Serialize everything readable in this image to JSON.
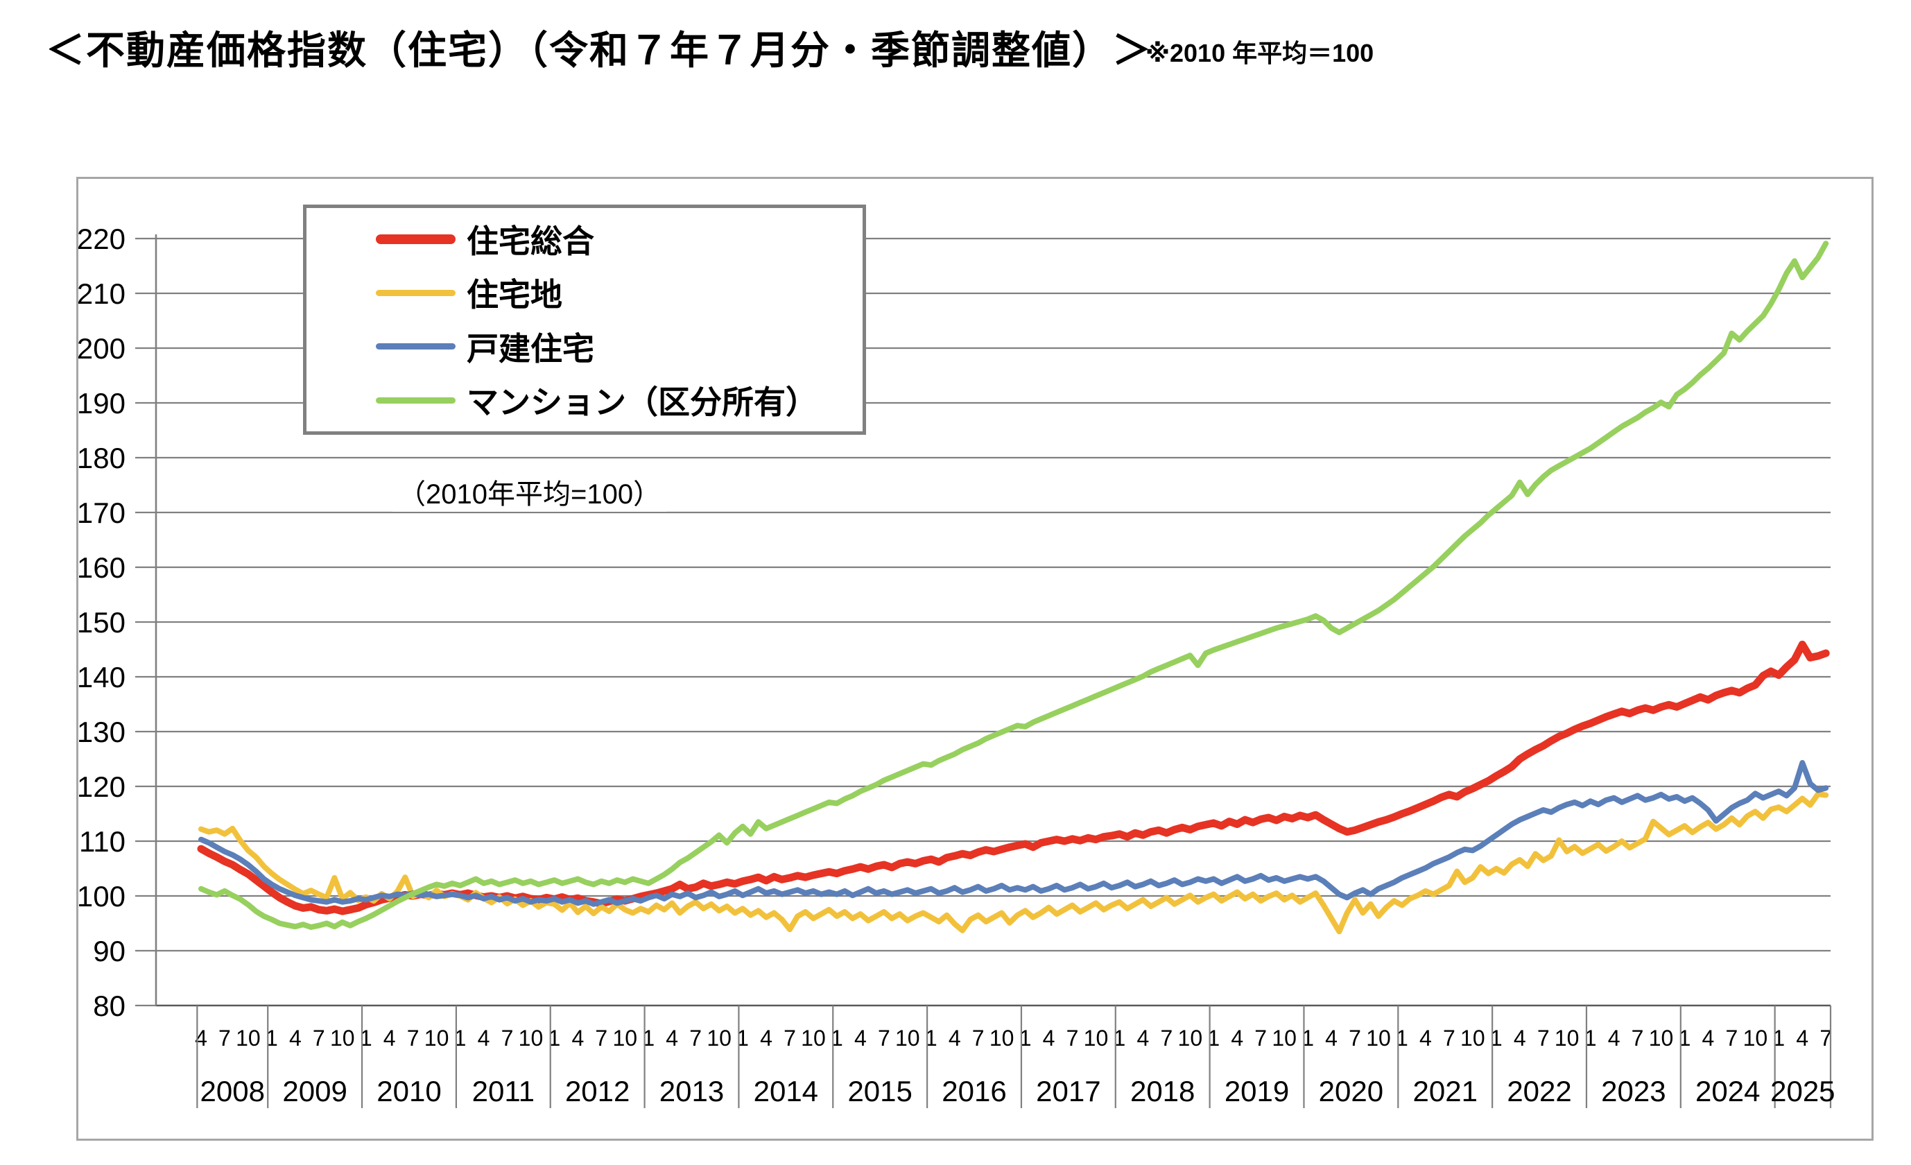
{
  "page": {
    "title": "＜不動産価格指数（住宅）（令和７年７月分・季節調整値）＞",
    "note": "※2010 年平均＝100"
  },
  "chart_data": {
    "type": "line",
    "title": "不動産価格指数（住宅）",
    "note": "（2010年平均=100）",
    "grid": true,
    "grid_color": "#808080",
    "legend_position": "top-left",
    "ylim": [
      80,
      220
    ],
    "y_ticks": [
      220,
      210,
      200,
      190,
      180,
      170,
      160,
      150,
      140,
      130,
      120,
      110,
      100,
      90,
      80
    ],
    "x_start": "2008-04",
    "x_end": "2025-07",
    "x_axis": {
      "years": [
        {
          "label": "2008",
          "months": [
            4,
            7,
            10
          ]
        },
        {
          "label": "2009",
          "months": [
            1,
            4,
            7,
            10
          ]
        },
        {
          "label": "2010",
          "months": [
            1,
            4,
            7,
            10
          ]
        },
        {
          "label": "2011",
          "months": [
            1,
            4,
            7,
            10
          ]
        },
        {
          "label": "2012",
          "months": [
            1,
            4,
            7,
            10
          ]
        },
        {
          "label": "2013",
          "months": [
            1,
            4,
            7,
            10
          ]
        },
        {
          "label": "2014",
          "months": [
            1,
            4,
            7,
            10
          ]
        },
        {
          "label": "2015",
          "months": [
            1,
            4,
            7,
            10
          ]
        },
        {
          "label": "2016",
          "months": [
            1,
            4,
            7,
            10
          ]
        },
        {
          "label": "2017",
          "months": [
            1,
            4,
            7,
            10
          ]
        },
        {
          "label": "2018",
          "months": [
            1,
            4,
            7,
            10
          ]
        },
        {
          "label": "2019",
          "months": [
            1,
            4,
            7,
            10
          ]
        },
        {
          "label": "2020",
          "months": [
            1,
            4,
            7,
            10
          ]
        },
        {
          "label": "2021",
          "months": [
            1,
            4,
            7,
            10
          ]
        },
        {
          "label": "2022",
          "months": [
            1,
            4,
            7,
            10
          ]
        },
        {
          "label": "2023",
          "months": [
            1,
            4,
            7,
            10
          ]
        },
        {
          "label": "2024",
          "months": [
            1,
            4,
            7,
            10
          ]
        },
        {
          "label": "2025",
          "months": [
            1,
            4,
            7
          ]
        }
      ]
    },
    "legend": [
      {
        "label": "住宅総合",
        "color": "#e63323",
        "thick": 14
      },
      {
        "label": "住宅地",
        "color": "#f2c13c",
        "thick": 9
      },
      {
        "label": "戸建住宅",
        "color": "#5b7fb9",
        "thick": 9
      },
      {
        "label": "マンション（区分所有）",
        "color": "#97d05e",
        "thick": 9
      }
    ],
    "series": [
      {
        "name": "住宅総合",
        "color": "#e63323",
        "width": 11,
        "values": [
          108.6,
          107.8,
          107.1,
          106.3,
          105.7,
          104.8,
          104.0,
          102.9,
          101.8,
          100.7,
          99.7,
          98.9,
          98.2,
          97.8,
          98.0,
          97.5,
          97.3,
          97.6,
          97.2,
          97.5,
          97.8,
          98.4,
          98.8,
          99.3,
          99.6,
          99.9,
          100.2,
          100.0,
          100.3,
          100.1,
          100.4,
          100.2,
          100.5,
          100.2,
          100.5,
          100.1,
          99.8,
          100.0,
          99.7,
          100.0,
          99.6,
          99.9,
          99.5,
          99.3,
          99.7,
          99.4,
          99.8,
          99.3,
          99.6,
          99.1,
          98.9,
          98.6,
          99.0,
          99.4,
          99.1,
          99.5,
          99.9,
          100.2,
          100.5,
          100.9,
          101.3,
          102.1,
          101.3,
          101.6,
          102.3,
          101.8,
          102.1,
          102.5,
          102.2,
          102.7,
          103.0,
          103.4,
          102.8,
          103.5,
          103.0,
          103.3,
          103.7,
          103.4,
          103.8,
          104.1,
          104.4,
          104.1,
          104.6,
          104.9,
          105.3,
          104.9,
          105.4,
          105.7,
          105.2,
          105.9,
          106.2,
          105.9,
          106.4,
          106.7,
          106.2,
          107.0,
          107.3,
          107.7,
          107.4,
          108.0,
          108.4,
          108.1,
          108.5,
          108.9,
          109.2,
          109.5,
          108.9,
          109.7,
          110.0,
          110.3,
          110.0,
          110.4,
          110.1,
          110.6,
          110.3,
          110.8,
          111.0,
          111.3,
          110.8,
          111.5,
          111.1,
          111.7,
          112.0,
          111.5,
          112.1,
          112.5,
          112.1,
          112.7,
          113.0,
          113.3,
          112.8,
          113.6,
          113.1,
          113.9,
          113.4,
          114.0,
          114.3,
          113.8,
          114.5,
          114.1,
          114.7,
          114.3,
          114.8,
          113.9,
          113.1,
          112.3,
          111.7,
          112.0,
          112.5,
          113.0,
          113.5,
          113.9,
          114.4,
          115.0,
          115.5,
          116.1,
          116.7,
          117.3,
          118.0,
          118.5,
          118.1,
          119.0,
          119.6,
          120.3,
          121.0,
          121.9,
          122.7,
          123.6,
          125.0,
          125.9,
          126.7,
          127.4,
          128.3,
          129.1,
          129.7,
          130.4,
          131.0,
          131.5,
          132.1,
          132.7,
          133.2,
          133.7,
          133.3,
          133.9,
          134.3,
          133.9,
          134.5,
          134.9,
          134.5,
          135.1,
          135.7,
          136.3,
          135.8,
          136.6,
          137.1,
          137.5,
          137.1,
          137.9,
          138.5,
          140.2,
          141.0,
          140.3,
          141.8,
          143.1,
          145.9,
          143.5,
          143.8,
          144.3
        ]
      },
      {
        "name": "住宅地",
        "color": "#f2c13c",
        "width": 8,
        "values": [
          112.2,
          111.7,
          112.0,
          111.3,
          112.3,
          110.1,
          108.3,
          107.1,
          105.4,
          104.1,
          103.0,
          102.1,
          101.2,
          100.4,
          101.0,
          100.3,
          99.7,
          103.3,
          99.5,
          100.6,
          99.2,
          99.8,
          99.1,
          100.4,
          99.5,
          100.8,
          103.4,
          99.9,
          100.6,
          99.7,
          101.0,
          99.9,
          100.4,
          100.0,
          99.3,
          100.6,
          99.6,
          98.8,
          99.8,
          98.6,
          99.4,
          98.3,
          99.1,
          98.0,
          98.8,
          98.5,
          97.4,
          98.7,
          97.0,
          98.1,
          96.8,
          98.0,
          97.2,
          98.5,
          97.5,
          96.9,
          97.7,
          97.1,
          98.3,
          97.5,
          98.7,
          96.9,
          98.1,
          98.9,
          97.7,
          98.5,
          97.3,
          98.1,
          96.9,
          97.7,
          96.5,
          97.3,
          96.1,
          96.9,
          95.7,
          93.9,
          96.3,
          97.1,
          95.9,
          96.7,
          97.5,
          96.3,
          97.1,
          95.9,
          96.7,
          95.5,
          96.3,
          97.1,
          95.9,
          96.7,
          95.5,
          96.3,
          96.9,
          96.1,
          95.3,
          96.5,
          94.9,
          93.7,
          95.7,
          96.5,
          95.3,
          96.1,
          96.9,
          95.1,
          96.5,
          97.3,
          96.1,
          96.9,
          97.9,
          96.7,
          97.5,
          98.3,
          97.1,
          97.9,
          98.7,
          97.5,
          98.3,
          98.9,
          97.7,
          98.5,
          99.3,
          98.1,
          98.9,
          99.7,
          98.5,
          99.3,
          100.1,
          98.9,
          99.7,
          100.3,
          99.1,
          99.9,
          100.7,
          99.5,
          100.3,
          99.1,
          99.9,
          100.5,
          99.3,
          100.1,
          98.9,
          99.7,
          100.5,
          98.3,
          95.9,
          93.5,
          96.9,
          99.3,
          96.9,
          98.5,
          96.3,
          97.9,
          99.1,
          98.3,
          99.5,
          100.1,
          100.9,
          100.3,
          101.1,
          101.9,
          104.5,
          102.5,
          103.3,
          105.3,
          104.1,
          105.0,
          104.2,
          105.8,
          106.6,
          105.4,
          107.7,
          106.5,
          107.3,
          110.2,
          108.1,
          109.0,
          107.8,
          108.6,
          109.4,
          108.2,
          109.0,
          110.0,
          108.8,
          109.6,
          110.4,
          113.6,
          112.4,
          111.2,
          112.0,
          112.8,
          111.6,
          112.6,
          113.4,
          112.2,
          113.0,
          114.2,
          113.0,
          114.6,
          115.4,
          114.2,
          115.8,
          116.2,
          115.4,
          116.6,
          117.8,
          116.6,
          118.6,
          118.4
        ]
      },
      {
        "name": "戸建住宅",
        "color": "#5b7fb9",
        "width": 8,
        "values": [
          110.3,
          109.7,
          108.9,
          108.1,
          107.5,
          106.7,
          105.7,
          104.5,
          103.1,
          102.1,
          101.3,
          100.7,
          100.1,
          99.7,
          99.3,
          99.1,
          98.9,
          99.3,
          98.9,
          99.1,
          99.5,
          99.3,
          99.7,
          100.1,
          99.9,
          100.3,
          100.1,
          100.5,
          100.1,
          100.3,
          99.9,
          100.1,
          100.3,
          100.1,
          99.7,
          100.1,
          99.5,
          99.9,
          99.3,
          99.7,
          99.1,
          99.5,
          98.9,
          99.3,
          99.1,
          99.5,
          98.9,
          99.3,
          98.7,
          99.1,
          98.5,
          98.9,
          99.3,
          98.7,
          99.1,
          99.5,
          99.1,
          99.7,
          100.1,
          99.5,
          100.3,
          99.9,
          100.5,
          99.7,
          100.1,
          100.7,
          99.9,
          100.3,
          100.9,
          100.1,
          100.7,
          101.3,
          100.5,
          100.9,
          100.3,
          100.7,
          101.1,
          100.5,
          100.9,
          100.3,
          100.7,
          100.3,
          100.9,
          100.1,
          100.7,
          101.3,
          100.5,
          100.9,
          100.3,
          100.7,
          101.1,
          100.5,
          100.9,
          101.3,
          100.5,
          100.9,
          101.5,
          100.7,
          101.1,
          101.7,
          100.9,
          101.3,
          101.9,
          101.1,
          101.5,
          101.1,
          101.7,
          100.9,
          101.3,
          101.9,
          101.1,
          101.5,
          102.1,
          101.3,
          101.7,
          102.3,
          101.5,
          101.9,
          102.5,
          101.7,
          102.1,
          102.7,
          101.9,
          102.3,
          102.9,
          102.1,
          102.5,
          103.1,
          102.7,
          103.1,
          102.3,
          102.9,
          103.5,
          102.7,
          103.1,
          103.7,
          102.9,
          103.3,
          102.7,
          103.1,
          103.5,
          103.1,
          103.5,
          102.7,
          101.5,
          100.3,
          99.7,
          100.5,
          101.1,
          100.3,
          101.3,
          101.9,
          102.5,
          103.3,
          103.9,
          104.5,
          105.1,
          105.9,
          106.5,
          107.1,
          107.9,
          108.5,
          108.3,
          109.1,
          110.1,
          111.1,
          112.1,
          113.1,
          113.9,
          114.5,
          115.1,
          115.7,
          115.3,
          116.1,
          116.7,
          117.1,
          116.5,
          117.3,
          116.7,
          117.5,
          117.9,
          117.1,
          117.7,
          118.3,
          117.5,
          117.9,
          118.5,
          117.7,
          118.1,
          117.3,
          117.9,
          116.9,
          115.7,
          113.7,
          114.9,
          116.1,
          116.9,
          117.5,
          118.7,
          117.9,
          118.5,
          119.1,
          118.3,
          119.7,
          124.3,
          120.5,
          119.3,
          119.7
        ]
      },
      {
        "name": "マンション（区分所有）",
        "color": "#97d05e",
        "width": 8,
        "values": [
          101.3,
          100.7,
          100.2,
          100.9,
          100.1,
          99.4,
          98.4,
          97.2,
          96.3,
          95.7,
          95.0,
          94.7,
          94.4,
          94.8,
          94.3,
          94.6,
          95.0,
          94.4,
          95.2,
          94.6,
          95.3,
          95.9,
          96.6,
          97.4,
          98.2,
          99.0,
          99.7,
          100.4,
          101.0,
          101.6,
          102.1,
          101.8,
          102.3,
          101.9,
          102.5,
          103.1,
          102.3,
          102.7,
          102.1,
          102.5,
          102.9,
          102.3,
          102.7,
          102.1,
          102.5,
          102.9,
          102.3,
          102.7,
          103.1,
          102.5,
          102.1,
          102.7,
          102.3,
          102.9,
          102.5,
          103.1,
          102.7,
          102.3,
          103.1,
          103.9,
          104.9,
          106.1,
          106.9,
          107.9,
          108.9,
          109.9,
          111.1,
          109.7,
          111.5,
          112.7,
          111.3,
          113.5,
          112.3,
          112.9,
          113.5,
          114.1,
          114.7,
          115.3,
          115.9,
          116.5,
          117.1,
          116.9,
          117.7,
          118.3,
          119.1,
          119.7,
          120.3,
          121.1,
          121.7,
          122.3,
          122.9,
          123.5,
          124.1,
          123.9,
          124.7,
          125.3,
          125.9,
          126.7,
          127.3,
          127.9,
          128.7,
          129.3,
          129.9,
          130.5,
          131.1,
          130.9,
          131.7,
          132.3,
          132.9,
          133.5,
          134.1,
          134.7,
          135.3,
          135.9,
          136.5,
          137.1,
          137.7,
          138.3,
          138.9,
          139.5,
          140.1,
          140.9,
          141.5,
          142.1,
          142.7,
          143.3,
          143.9,
          142.1,
          144.3,
          144.9,
          145.4,
          145.9,
          146.4,
          146.9,
          147.4,
          147.9,
          148.4,
          148.9,
          149.3,
          149.7,
          150.1,
          150.5,
          151.1,
          150.3,
          148.9,
          148.1,
          148.9,
          149.7,
          150.5,
          151.3,
          152.1,
          153.1,
          154.1,
          155.3,
          156.5,
          157.7,
          158.9,
          160.1,
          161.5,
          162.9,
          164.3,
          165.7,
          166.9,
          168.1,
          169.5,
          170.7,
          171.9,
          173.1,
          175.5,
          173.3,
          175.1,
          176.5,
          177.7,
          178.5,
          179.3,
          180.1,
          180.9,
          181.7,
          182.7,
          183.7,
          184.7,
          185.7,
          186.5,
          187.3,
          188.3,
          189.1,
          190.1,
          189.3,
          191.5,
          192.5,
          193.7,
          195.1,
          196.3,
          197.7,
          199.1,
          202.7,
          201.5,
          203.1,
          204.5,
          205.9,
          208.1,
          210.7,
          213.7,
          215.9,
          212.9,
          214.7,
          216.5,
          219.1
        ]
      }
    ]
  }
}
